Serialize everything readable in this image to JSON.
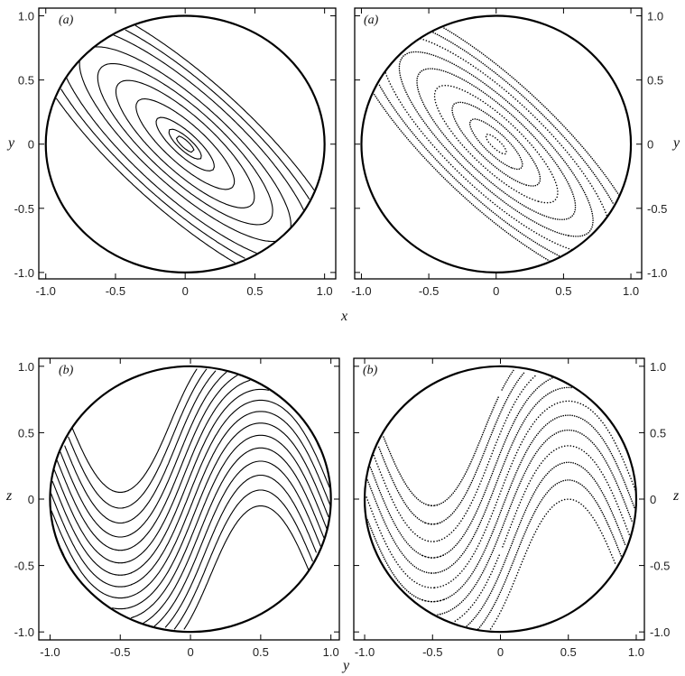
{
  "figure": {
    "panel_a_label": "(a)",
    "panel_b_label": "(b)",
    "label_x": "x",
    "label_y": "y",
    "label_z": "z"
  },
  "chart_data": [
    {
      "id": "a-left",
      "type": "line",
      "style": "continuous",
      "panel_label": "(a)",
      "xlabel": "x",
      "ylabel": "y",
      "xlim": [
        -1.05,
        1.08
      ],
      "ylim": [
        -1.05,
        1.06
      ],
      "xticks": [
        "-1.0",
        "-0.5",
        "0",
        "0.5",
        "1.0"
      ],
      "yticks": [
        "1.0",
        "0.5",
        "0",
        "-0.5",
        "-1.0"
      ],
      "boundary": "unit circle",
      "family": "nested elliptical orbits aligned along y = -x",
      "orbit_levels": [
        0.05,
        0.09,
        0.16,
        0.27,
        0.38,
        0.48,
        0.58,
        0.7,
        0.8,
        0.9
      ]
    },
    {
      "id": "a-right",
      "type": "scatter",
      "style": "dotted surface of section",
      "panel_label": "(a)",
      "ylabel": "y",
      "xlim": [
        -1.05,
        1.08
      ],
      "ylim": [
        -1.05,
        1.06
      ],
      "xticks": [
        "-1.0",
        "-0.5",
        "0",
        "0.5",
        "1.0"
      ],
      "yticks": [
        "1.0",
        "0.5",
        "0",
        "-0.5",
        "-1.0"
      ],
      "boundary": "unit circle",
      "family": "nested elliptical orbits aligned along y = -x",
      "orbit_levels": [
        0.06,
        0.15,
        0.25,
        0.35,
        0.45,
        0.55,
        0.65,
        0.75,
        0.85
      ]
    },
    {
      "id": "b-left",
      "type": "line",
      "style": "continuous",
      "panel_label": "(b)",
      "xlabel": "y",
      "ylabel": "z",
      "xlim": [
        -1.08,
        1.06
      ],
      "ylim": [
        -1.06,
        1.06
      ],
      "xticks": [
        "-1.0",
        "-0.5",
        "0",
        "0.5",
        "1.0"
      ],
      "yticks": [
        "1.0",
        "0.5",
        "0",
        "-0.5",
        "-1.0"
      ],
      "boundary": "unit circle",
      "family": "central elliptic island with S-shaped separatrix and satellite islands near (-0.5, 0.6) and (0.5, -0.6)",
      "orbit_levels": [
        -0.9,
        -0.78,
        -0.66,
        -0.54,
        -0.42,
        -0.3,
        -0.18,
        -0.06,
        0.06,
        0.18,
        0.3,
        0.42,
        0.54,
        0.66,
        0.78,
        0.9
      ]
    },
    {
      "id": "b-right",
      "type": "scatter",
      "style": "dotted surface of section",
      "panel_label": "(b)",
      "ylabel": "z",
      "xlim": [
        -1.08,
        1.06
      ],
      "ylim": [
        -1.06,
        1.06
      ],
      "xticks": [
        "-1.0",
        "-0.5",
        "0",
        "0.5",
        "1.0"
      ],
      "yticks": [
        "1.0",
        "0.5",
        "0",
        "-0.5",
        "-1.0"
      ],
      "boundary": "unit circle",
      "family": "central elliptic island with S-shaped separatrix and satellite islands near (-0.5, 0.6) and (0.5, -0.6)",
      "orbit_levels": [
        -0.85,
        -0.7,
        -0.55,
        -0.4,
        -0.25,
        -0.1,
        0.05,
        0.2,
        0.35,
        0.5,
        0.65,
        0.8
      ]
    }
  ]
}
